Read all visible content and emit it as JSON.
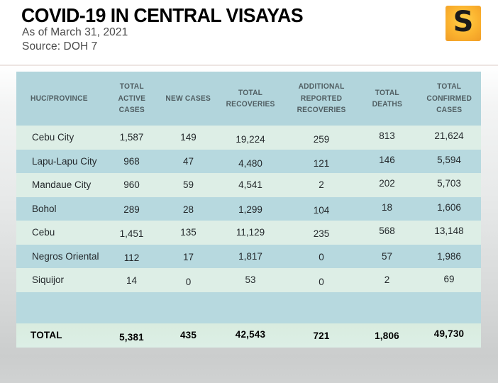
{
  "colors": {
    "page_top": "#ffffff",
    "page_bottom": "#cbcdcd",
    "divider": "#e7dcd8",
    "title_text": "#000000",
    "subtitle_text": "#4a4a4a",
    "header_bg": "#b2d5dc",
    "header_text": "#515f63",
    "row_green": "#ddeee6",
    "row_blue": "#b7d9df",
    "total_bg": "#d9ecdf",
    "body_text": "#24292c",
    "total_text": "#000000",
    "logo_yellow_light": "#ffd24a",
    "logo_yellow": "#fbb32f",
    "logo_yellow_dark": "#f09c26",
    "logo_letter": "#1b1b1b"
  },
  "header": {
    "title": "COVID-19 IN CENTRAL VISAYAS",
    "as_of": "As of March 31, 2021",
    "source": "Source: DOH 7",
    "logo_letter": "S"
  },
  "chart_data": {
    "type": "table",
    "title": "COVID-19 IN CENTRAL VISAYAS",
    "subtitle": "As of March 31, 2021",
    "source": "DOH 7",
    "columns": [
      "HUC/PROVINCE",
      "TOTAL\nACTIVE\nCASES",
      "NEW CASES",
      "TOTAL\nRECOVERIES",
      "ADDITIONAL\nREPORTED\nRECOVERIES",
      "TOTAL\nDEATHS",
      "TOTAL\nCONFIRMED\nCASES"
    ],
    "rows": [
      [
        "Cebu City",
        1587,
        149,
        19224,
        259,
        813,
        21624
      ],
      [
        "Lapu-Lapu City",
        968,
        47,
        4480,
        121,
        146,
        5594
      ],
      [
        "Mandaue City",
        960,
        59,
        4541,
        2,
        202,
        5703
      ],
      [
        "Bohol",
        289,
        28,
        1299,
        104,
        18,
        1606
      ],
      [
        "Cebu",
        1451,
        135,
        11129,
        235,
        568,
        13148
      ],
      [
        "Negros Oriental",
        112,
        17,
        1817,
        0,
        57,
        1986
      ],
      [
        "Siquijor",
        14,
        0,
        53,
        0,
        2,
        69
      ]
    ],
    "total_row": [
      "TOTAL",
      5381,
      435,
      42543,
      721,
      1806,
      49730
    ]
  }
}
